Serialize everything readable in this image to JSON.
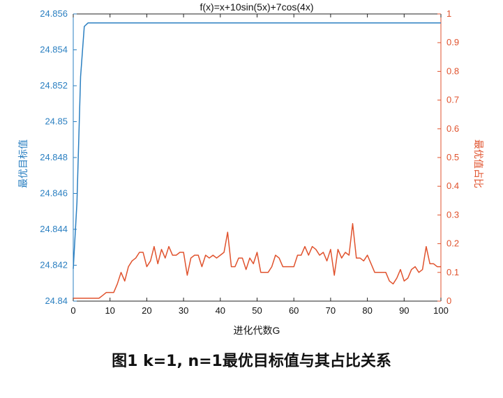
{
  "chart_data": {
    "type": "line",
    "title": "f(x)=x+10sin(5x)+7cos(4x)",
    "xlabel": "进化代数G",
    "ylabel_left": "最优目标值",
    "ylabel_right": "最优值占比",
    "xlim": [
      0,
      100
    ],
    "ylim_left": [
      24.84,
      24.856
    ],
    "ylim_right": [
      0,
      1
    ],
    "x_ticks": [
      "0",
      "10",
      "20",
      "30",
      "40",
      "50",
      "60",
      "70",
      "80",
      "90",
      "100"
    ],
    "y_left_ticks": [
      "24.84",
      "24.842",
      "24.844",
      "24.846",
      "24.848",
      "24.85",
      "24.852",
      "24.854",
      "24.856"
    ],
    "y_right_ticks": [
      "0",
      "0.1",
      "0.2",
      "0.3",
      "0.4",
      "0.5",
      "0.6",
      "0.7",
      "0.8",
      "0.9",
      "1"
    ],
    "grid": false,
    "series": [
      {
        "axis": "left",
        "color": "#2a7fc1",
        "x": [
          0,
          1,
          2,
          3,
          4,
          100
        ],
        "y": [
          24.8418,
          24.8455,
          24.8525,
          24.8553,
          24.8555,
          24.8555
        ]
      },
      {
        "axis": "right",
        "color": "#e0522d",
        "x": [
          0,
          1,
          2,
          3,
          4,
          5,
          6,
          7,
          8,
          9,
          10,
          11,
          12,
          13,
          14,
          15,
          16,
          17,
          18,
          19,
          20,
          21,
          22,
          23,
          24,
          25,
          26,
          27,
          28,
          29,
          30,
          31,
          32,
          33,
          34,
          35,
          36,
          37,
          38,
          39,
          40,
          41,
          42,
          43,
          44,
          45,
          46,
          47,
          48,
          49,
          50,
          51,
          52,
          53,
          54,
          55,
          56,
          57,
          58,
          59,
          60,
          61,
          62,
          63,
          64,
          65,
          66,
          67,
          68,
          69,
          70,
          71,
          72,
          73,
          74,
          75,
          76,
          77,
          78,
          79,
          80,
          81,
          82,
          83,
          84,
          85,
          86,
          87,
          88,
          89,
          90,
          91,
          92,
          93,
          94,
          95,
          96,
          97,
          98,
          99,
          100
        ],
        "y": [
          0.01,
          0.01,
          0.01,
          0.01,
          0.01,
          0.01,
          0.01,
          0.01,
          0.02,
          0.03,
          0.03,
          0.03,
          0.06,
          0.1,
          0.07,
          0.12,
          0.14,
          0.15,
          0.17,
          0.17,
          0.12,
          0.14,
          0.19,
          0.13,
          0.18,
          0.15,
          0.19,
          0.16,
          0.16,
          0.17,
          0.17,
          0.09,
          0.15,
          0.16,
          0.16,
          0.12,
          0.16,
          0.15,
          0.16,
          0.15,
          0.16,
          0.17,
          0.24,
          0.12,
          0.12,
          0.15,
          0.15,
          0.11,
          0.15,
          0.13,
          0.17,
          0.1,
          0.1,
          0.1,
          0.12,
          0.16,
          0.15,
          0.12,
          0.12,
          0.12,
          0.12,
          0.16,
          0.16,
          0.19,
          0.16,
          0.19,
          0.18,
          0.16,
          0.17,
          0.14,
          0.18,
          0.09,
          0.18,
          0.15,
          0.17,
          0.16,
          0.27,
          0.15,
          0.15,
          0.14,
          0.16,
          0.13,
          0.1,
          0.1,
          0.1,
          0.1,
          0.07,
          0.06,
          0.08,
          0.11,
          0.07,
          0.08,
          0.11,
          0.12,
          0.1,
          0.11,
          0.19,
          0.13,
          0.13,
          0.12,
          0.12
        ]
      }
    ]
  },
  "caption": "图1  k=1, n=1最优目标值与其占比关系"
}
